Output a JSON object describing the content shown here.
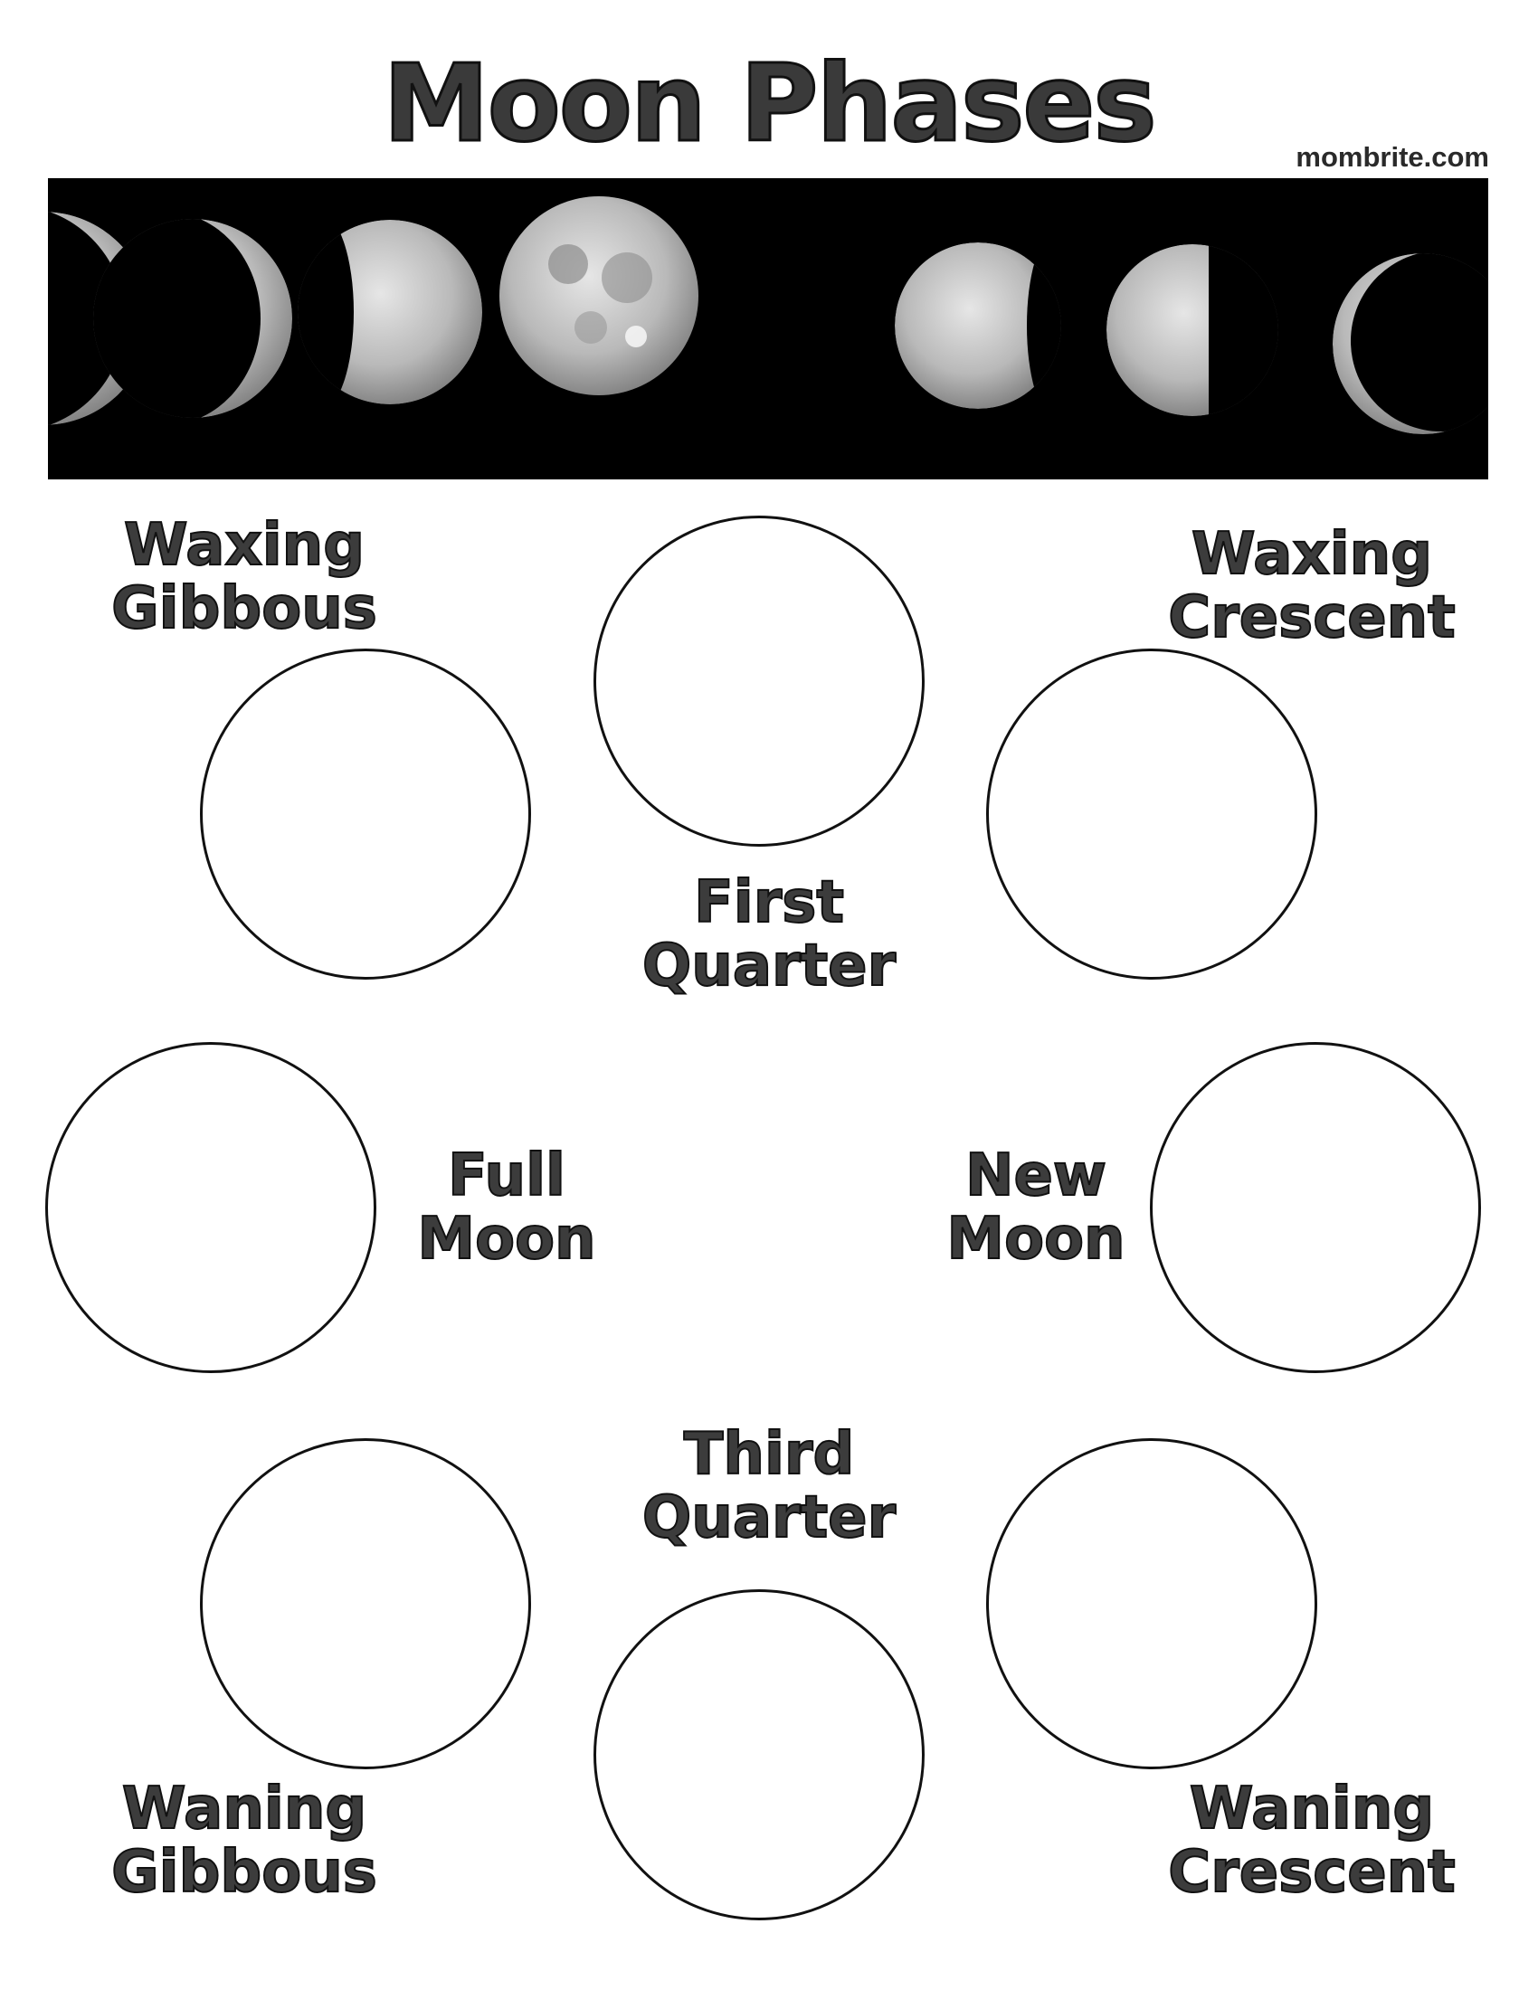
{
  "title": "Moon Phases",
  "site": "mombrite.com",
  "colors": {
    "banner_background": "#000000",
    "ink": "#111111",
    "moon": "#c8c8c8"
  },
  "banner": {
    "image_description": "Seven photographic moon phases on a black background, from waning crescent through full moon to waxing crescent"
  },
  "phases": [
    {
      "id": "waxing-gibbous",
      "line1": "Waxing",
      "line2": "Gibbous"
    },
    {
      "id": "first-quarter",
      "line1": "First",
      "line2": "Quarter"
    },
    {
      "id": "waxing-crescent",
      "line1": "Waxing",
      "line2": "Crescent"
    },
    {
      "id": "full-moon",
      "line1": "Full",
      "line2": "Moon"
    },
    {
      "id": "new-moon",
      "line1": "New",
      "line2": "Moon"
    },
    {
      "id": "third-quarter",
      "line1": "Third",
      "line2": "Quarter"
    },
    {
      "id": "waning-gibbous",
      "line1": "Waning",
      "line2": "Gibbous"
    },
    {
      "id": "waning-crescent",
      "line1": "Waning",
      "line2": "Crescent"
    }
  ]
}
